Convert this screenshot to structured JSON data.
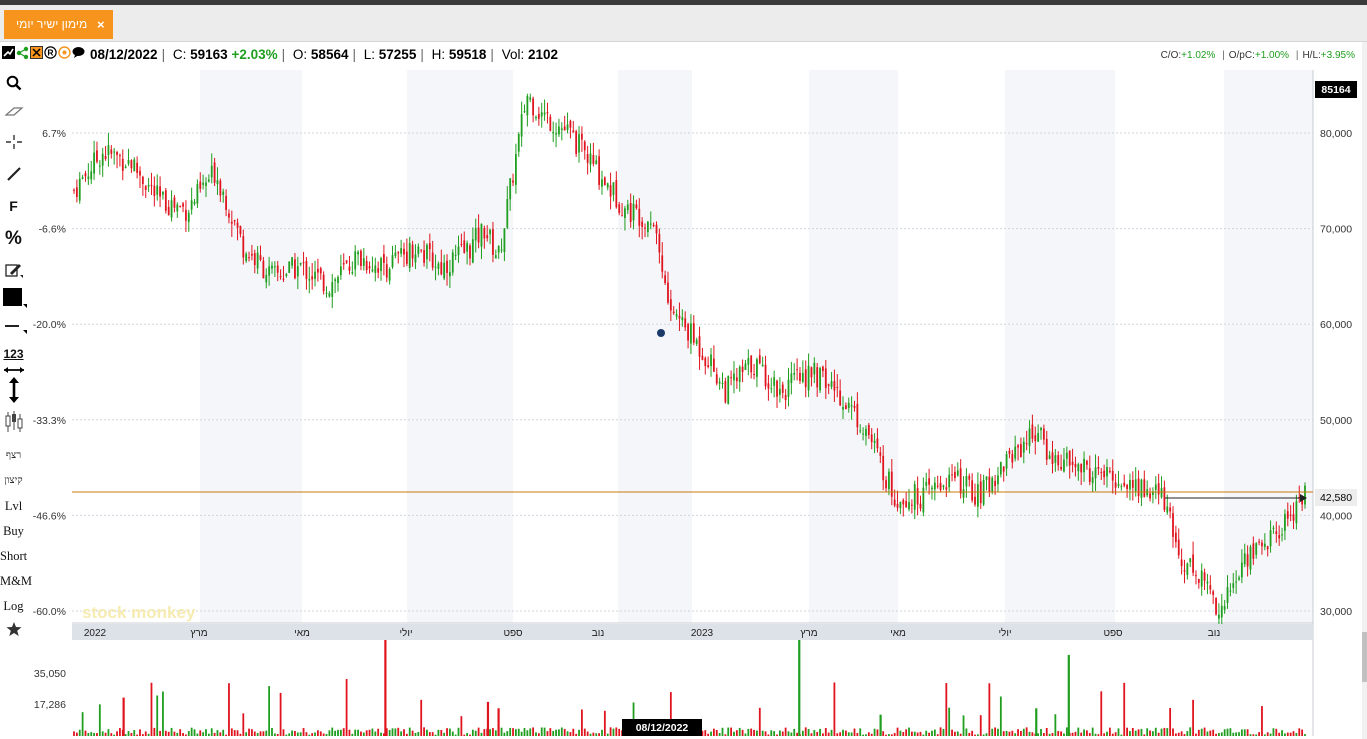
{
  "tab": {
    "title": "מימון ישיר יומי",
    "close": "×"
  },
  "info": {
    "date": "08/12/2022",
    "close_label": "C:",
    "close": "59163",
    "change": "+2.03%",
    "open_label": "O:",
    "open": "58564",
    "low_label": "L:",
    "low": "57255",
    "high_label": "H:",
    "high": "59518",
    "vol_label": "Vol:",
    "vol": "2102"
  },
  "ratios": {
    "co_label": "C/O:",
    "co": "+1.02%",
    "opc_label": "O/pC:",
    "opc": "+1.00%",
    "hl_label": "H/L:",
    "hl": "+3.95%"
  },
  "toolbar": {
    "icons": [
      "search-icon",
      "eraser-icon",
      "crosshair-icon",
      "line-icon",
      "fibonacci-icon",
      "percent-icon",
      "edit-icon",
      "color-swatch-icon",
      "line-style-icon",
      "numbers-icon",
      "vertical-resize-icon",
      "candlestick-icon"
    ],
    "fib_label": "F",
    "percent_label": "%",
    "numbers_label": "123",
    "continuous": "רצף",
    "split": "קיצון",
    "lvl": "Lvl",
    "buy": "Buy",
    "short": "Short",
    "mm": "M&M",
    "log": "Log"
  },
  "colors": {
    "up": "#1f9e1f",
    "down": "#e0141e",
    "accent": "#f7941d",
    "level_line": "#c8780a"
  },
  "chart_data": {
    "type": "candlestick",
    "title": "",
    "price_axis": [
      "80,000",
      "70,000",
      "60,000",
      "50,000",
      "40,000",
      "30,000"
    ],
    "price_values": [
      80000,
      70000,
      60000,
      50000,
      40000,
      30000
    ],
    "percent_axis": [
      "6.7%",
      "-6.6%",
      "-20.0%",
      "-33.3%",
      "-46.6%",
      "-60.0%"
    ],
    "current_price_label": "42,580",
    "current_price": 42580,
    "top_price_label": "85164",
    "time_axis": [
      "2022",
      "מרץ",
      "מאי",
      "יולי",
      "ספט",
      "נוב",
      "2023",
      "מרץ",
      "מאי",
      "יולי",
      "ספט",
      "נוב"
    ],
    "volume_axis": [
      "35,050",
      "17,286"
    ],
    "volume_values": [
      35050,
      17286
    ],
    "crosshair_date": "08/12/2022",
    "watermark": "stock monkey",
    "ylim": [
      29000,
      86000
    ],
    "approx_close_path": [
      [
        0,
        74000
      ],
      [
        4,
        78000
      ],
      [
        8,
        77000
      ],
      [
        12,
        73000
      ],
      [
        16,
        72000
      ],
      [
        20,
        76000
      ],
      [
        24,
        68000
      ],
      [
        28,
        65000
      ],
      [
        32,
        66000
      ],
      [
        36,
        64000
      ],
      [
        40,
        67000
      ],
      [
        44,
        66000
      ],
      [
        48,
        68000
      ],
      [
        52,
        66000
      ],
      [
        56,
        68000
      ],
      [
        58,
        70000
      ],
      [
        60,
        67000
      ],
      [
        64,
        84000
      ],
      [
        66,
        82000
      ],
      [
        70,
        80000
      ],
      [
        74,
        76000
      ],
      [
        78,
        72000
      ],
      [
        82,
        71000
      ],
      [
        84,
        62000
      ],
      [
        88,
        58000
      ],
      [
        90,
        56000
      ],
      [
        92,
        53000
      ],
      [
        96,
        56000
      ],
      [
        100,
        53000
      ],
      [
        104,
        55000
      ],
      [
        108,
        53000
      ],
      [
        112,
        49000
      ],
      [
        116,
        42000
      ],
      [
        120,
        42000
      ],
      [
        124,
        44000
      ],
      [
        128,
        42000
      ],
      [
        132,
        46000
      ],
      [
        136,
        49000
      ],
      [
        138,
        46000
      ],
      [
        142,
        45000
      ],
      [
        146,
        44000
      ],
      [
        150,
        43000
      ],
      [
        154,
        42000
      ],
      [
        156,
        36000
      ],
      [
        160,
        33000
      ],
      [
        162,
        30000
      ],
      [
        166,
        36000
      ],
      [
        170,
        38000
      ],
      [
        174,
        42500
      ]
    ]
  }
}
